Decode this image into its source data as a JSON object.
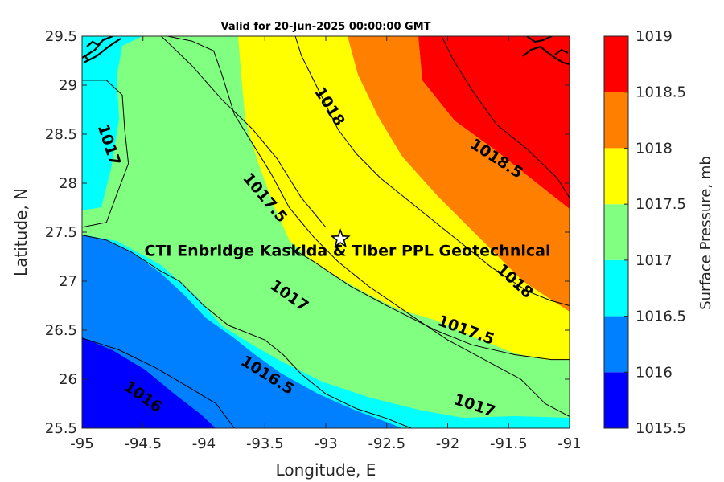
{
  "chart_data": {
    "type": "contour",
    "title": "Valid for 20-Jun-2025 00:00:00 GMT",
    "xlabel": "Longitude, E",
    "ylabel": "Latitude, N",
    "xlim": [
      -95,
      -91
    ],
    "ylim": [
      25.5,
      29.5
    ],
    "xticks": [
      -95,
      -94.5,
      -94,
      -93.5,
      -93,
      -92.5,
      -92,
      -91.5,
      -91
    ],
    "xtick_labels": [
      "-95",
      "-94.5",
      "-94",
      "-93.5",
      "-93",
      "-92.5",
      "-92",
      "-91.5",
      "-91"
    ],
    "yticks": [
      25.5,
      26,
      26.5,
      27,
      27.5,
      28,
      28.5,
      29,
      29.5
    ],
    "ytick_labels": [
      "25.5",
      "26",
      "26.5",
      "27",
      "27.5",
      "28",
      "28.5",
      "29",
      "29.5"
    ],
    "colorbar": {
      "label": "Surface Pressure, mb",
      "levels": [
        1015.5,
        1016,
        1016.5,
        1017,
        1017.5,
        1018,
        1018.5,
        1019
      ],
      "tick_labels": [
        "1015.5",
        "1016",
        "1016.5",
        "1017",
        "1017.5",
        "1018",
        "1018.5",
        "1019"
      ],
      "colors": [
        "#0000ff",
        "#0080ff",
        "#00ffff",
        "#80ff80",
        "#ffff00",
        "#ff8000",
        "#ff0000",
        "#800000"
      ]
    },
    "contour_lines": [
      {
        "level": 1016,
        "points": [
          [
            -95,
            26.42
          ],
          [
            -94.7,
            26.3
          ],
          [
            -94.4,
            26.12
          ],
          [
            -94.1,
            25.9
          ],
          [
            -93.9,
            25.75
          ],
          [
            -93.75,
            25.5
          ]
        ]
      },
      {
        "level": 1016.5,
        "points": [
          [
            -95,
            27.47
          ],
          [
            -94.8,
            27.42
          ],
          [
            -94.6,
            27.3
          ],
          [
            -94.35,
            27.1
          ],
          [
            -94.2,
            27.0
          ],
          [
            -94.0,
            26.75
          ],
          [
            -93.8,
            26.55
          ],
          [
            -93.5,
            26.4
          ],
          [
            -93.35,
            26.25
          ],
          [
            -93.2,
            26.05
          ],
          [
            -93.0,
            25.85
          ],
          [
            -92.75,
            25.7
          ],
          [
            -92.5,
            25.6
          ],
          [
            -92.3,
            25.5
          ]
        ]
      },
      {
        "level": 1017,
        "points": [
          [
            -94.3,
            29.5
          ],
          [
            -94.1,
            29.45
          ],
          [
            -93.92,
            29.35
          ],
          [
            -93.85,
            29.1
          ],
          [
            -93.75,
            28.7
          ],
          [
            -93.6,
            28.4
          ],
          [
            -93.45,
            28.1
          ],
          [
            -93.3,
            27.75
          ],
          [
            -93.1,
            27.45
          ],
          [
            -92.9,
            27.2
          ],
          [
            -92.65,
            26.95
          ],
          [
            -92.3,
            26.65
          ],
          [
            -92.0,
            26.4
          ],
          [
            -91.7,
            26.2
          ],
          [
            -91.4,
            26.0
          ],
          [
            -91.2,
            25.75
          ],
          [
            -91.0,
            25.62
          ]
        ]
      },
      {
        "level": 1017.5,
        "points": [
          [
            -95,
            29.05
          ],
          [
            -94.8,
            29.05
          ],
          [
            -94.67,
            28.9
          ],
          [
            -94.65,
            28.55
          ],
          [
            -94.62,
            28.2
          ],
          [
            -94.72,
            27.87
          ],
          [
            -94.8,
            27.6
          ],
          [
            -95,
            27.55
          ]
        ]
      },
      {
        "level": 1017.5,
        "points": [
          [
            -93.3,
            27.35
          ],
          [
            -93.1,
            27.2
          ],
          [
            -92.8,
            26.95
          ],
          [
            -92.5,
            26.75
          ],
          [
            -92.1,
            26.5
          ],
          [
            -91.8,
            26.35
          ],
          [
            -91.45,
            26.25
          ],
          [
            -91.15,
            26.2
          ],
          [
            -91.0,
            26.2
          ]
        ]
      },
      {
        "level": 1018,
        "points": [
          [
            -93.25,
            29.5
          ],
          [
            -93.2,
            29.3
          ],
          [
            -93.1,
            29.05
          ],
          [
            -93.0,
            28.8
          ],
          [
            -92.9,
            28.55
          ],
          [
            -92.75,
            28.3
          ],
          [
            -92.55,
            28.05
          ],
          [
            -92.25,
            27.75
          ],
          [
            -91.95,
            27.45
          ],
          [
            -91.65,
            27.15
          ],
          [
            -91.35,
            26.9
          ],
          [
            -91.15,
            26.8
          ],
          [
            -91.0,
            26.75
          ]
        ]
      },
      {
        "level": 1018,
        "points": [
          [
            -94.35,
            29.5
          ],
          [
            -94.1,
            29.2
          ],
          [
            -93.85,
            28.85
          ],
          [
            -93.6,
            28.55
          ],
          [
            -93.4,
            28.25
          ],
          [
            -93.2,
            27.85
          ],
          [
            -93.0,
            27.55
          ]
        ]
      },
      {
        "level": 1018.5,
        "points": [
          [
            -92.05,
            29.5
          ],
          [
            -91.95,
            29.25
          ],
          [
            -91.8,
            28.95
          ],
          [
            -91.6,
            28.6
          ],
          [
            -91.35,
            28.35
          ],
          [
            -91.1,
            28.05
          ],
          [
            -91.0,
            27.85
          ]
        ]
      }
    ],
    "contour_labels": [
      {
        "text": "1017",
        "lon": -94.78,
        "lat": 28.39,
        "angle": 72
      },
      {
        "text": "1018",
        "lon": -92.97,
        "lat": 28.78,
        "angle": 58
      },
      {
        "text": "1018.5",
        "lon": -91.6,
        "lat": 28.25,
        "angle": 33
      },
      {
        "text": "1017.5",
        "lon": -93.5,
        "lat": 27.85,
        "angle": 50
      },
      {
        "text": "1018",
        "lon": -91.45,
        "lat": 27.0,
        "angle": 42
      },
      {
        "text": "1017",
        "lon": -93.3,
        "lat": 26.85,
        "angle": 35
      },
      {
        "text": "1017.5",
        "lon": -91.85,
        "lat": 26.5,
        "angle": 20
      },
      {
        "text": "1016.5",
        "lon": -93.48,
        "lat": 26.04,
        "angle": 32
      },
      {
        "text": "1017",
        "lon": -91.78,
        "lat": 25.73,
        "angle": 18
      },
      {
        "text": "1016",
        "lon": -94.5,
        "lat": 25.82,
        "angle": 35
      }
    ],
    "marker": {
      "type": "star",
      "lon": -92.88,
      "lat": 27.43,
      "label": "CTI Enbridge  Kaskida & Tiber PPL Geotechnical"
    }
  }
}
